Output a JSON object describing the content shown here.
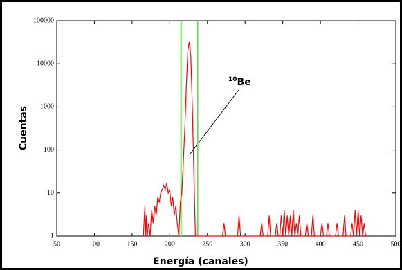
{
  "chart_data": {
    "type": "line",
    "xlabel": "Energía (canales)",
    "ylabel": "Cuentas",
    "xlim": [
      50,
      500
    ],
    "ylim": [
      1,
      100000
    ],
    "log_y": true,
    "xticks": [
      50,
      100,
      150,
      200,
      250,
      300,
      350,
      400,
      450,
      500
    ],
    "yticks": [
      1,
      10,
      100,
      1000,
      10000,
      100000
    ],
    "markers": {
      "color": "#66dd55",
      "x": [
        215,
        237
      ]
    },
    "annotation": {
      "superscript": "10",
      "text": "Be"
    },
    "series": [
      {
        "color": "#ff0000",
        "x": [
          165,
          167,
          168,
          169,
          170,
          172,
          174,
          176,
          178,
          180,
          182,
          184,
          186,
          188,
          190,
          192,
          194,
          196,
          198,
          200,
          202,
          204,
          206,
          208,
          210,
          212,
          214,
          216,
          218,
          220,
          222,
          224,
          226,
          228,
          230,
          232,
          234,
          236,
          240,
          270,
          272,
          274,
          290,
          292,
          294,
          320,
          322,
          324,
          330,
          332,
          334,
          340,
          342,
          344,
          346,
          348,
          350,
          352,
          354,
          356,
          358,
          360,
          362,
          364,
          366,
          368,
          370,
          372,
          374,
          380,
          382,
          384,
          388,
          390,
          392,
          400,
          402,
          404,
          408,
          410,
          412,
          420,
          422,
          424,
          430,
          432,
          434,
          440,
          442,
          444,
          446,
          448,
          450,
          452,
          454,
          456,
          458,
          460
        ],
        "values": [
          1,
          5,
          1,
          3,
          1,
          2,
          1,
          4,
          2,
          5,
          3,
          8,
          6,
          10,
          12,
          15,
          12,
          17,
          10,
          12,
          5,
          8,
          3,
          5,
          2,
          1,
          6,
          10,
          50,
          300,
          3000,
          20000,
          33000,
          15000,
          1000,
          30,
          1,
          1,
          1,
          1,
          2,
          1,
          1,
          3,
          1,
          1,
          2,
          1,
          1,
          3,
          1,
          1,
          2,
          1,
          1,
          3,
          1,
          4,
          1,
          3,
          1,
          3,
          1,
          4,
          1,
          2,
          1,
          3,
          1,
          1,
          2,
          1,
          1,
          3,
          1,
          1,
          2,
          1,
          1,
          2,
          1,
          1,
          2,
          1,
          1,
          3,
          1,
          1,
          2,
          1,
          4,
          1,
          4,
          1,
          3,
          1,
          2,
          1
        ]
      }
    ]
  }
}
